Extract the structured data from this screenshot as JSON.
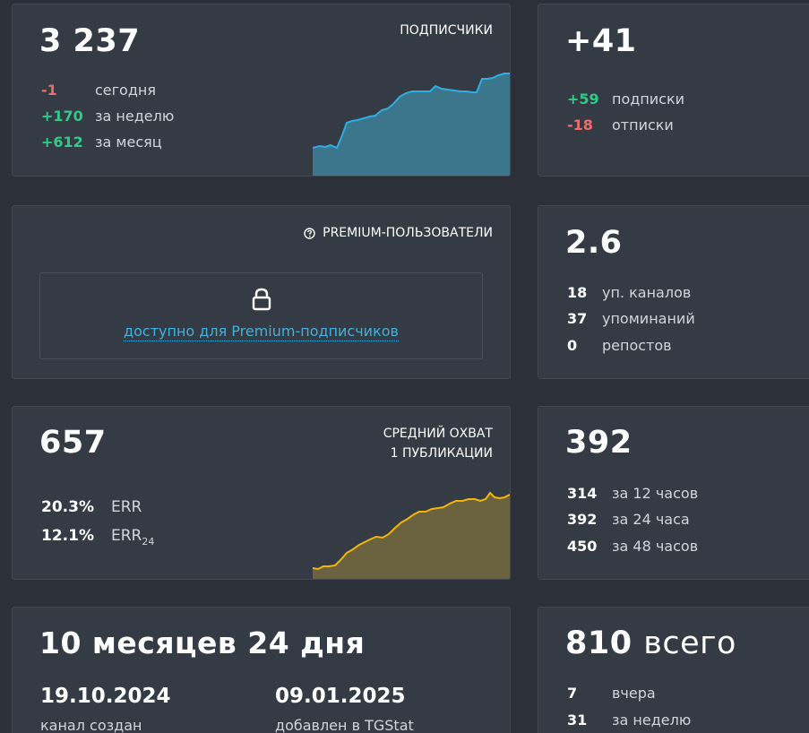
{
  "subscribers": {
    "value": "3 237",
    "label": "ПОДПИСЧИКИ",
    "rows": [
      {
        "num": "-1",
        "text": "сегодня"
      },
      {
        "num": "+170",
        "text": "за неделю"
      },
      {
        "num": "+612",
        "text": "за месяц"
      }
    ],
    "colors": {
      "line": "#2eaee3",
      "fill": "#3d7991"
    }
  },
  "daily_change": {
    "value": "+41",
    "rows": [
      {
        "num": "+59",
        "text": "подписки"
      },
      {
        "num": "-18",
        "text": "отписки"
      }
    ]
  },
  "premium": {
    "label": "PREMIUM-ПОЛЬЗОВАТЕЛИ",
    "icon": "question-circle-icon",
    "lock_icon": "lock-icon",
    "link": "доступно для Premium-подписчиков"
  },
  "citation": {
    "value": "2.6",
    "rows": [
      {
        "num": "18",
        "text": "уп. каналов"
      },
      {
        "num": "37",
        "text": "упоминаний"
      },
      {
        "num": "0",
        "text": "репостов"
      }
    ]
  },
  "reach": {
    "value": "657",
    "label_line1": "СРЕДНИЙ ОХВАТ",
    "label_line2": "1 ПУБЛИКАЦИИ",
    "err": {
      "num": "20.3%",
      "text": "ERR"
    },
    "err24": {
      "num": "12.1%",
      "text": "ERR",
      "sub": "24"
    },
    "colors": {
      "line": "#f2b705",
      "fill": "#6f6440"
    }
  },
  "views": {
    "value": "392",
    "rows": [
      {
        "num": "314",
        "text": "за 12 часов"
      },
      {
        "num": "392",
        "text": "за 24 часа"
      },
      {
        "num": "450",
        "text": "за 48 часов"
      }
    ]
  },
  "age": {
    "value": "10 месяцев 24 дня",
    "created_date": "19.10.2024",
    "created_label": "канал создан",
    "added_date": "09.01.2025",
    "added_label": "добавлен в TGStat"
  },
  "posts": {
    "value": "810",
    "value_suffix": "всего",
    "rows": [
      {
        "num": "7",
        "text": "вчера"
      },
      {
        "num": "31",
        "text": "за неделю"
      }
    ]
  }
}
